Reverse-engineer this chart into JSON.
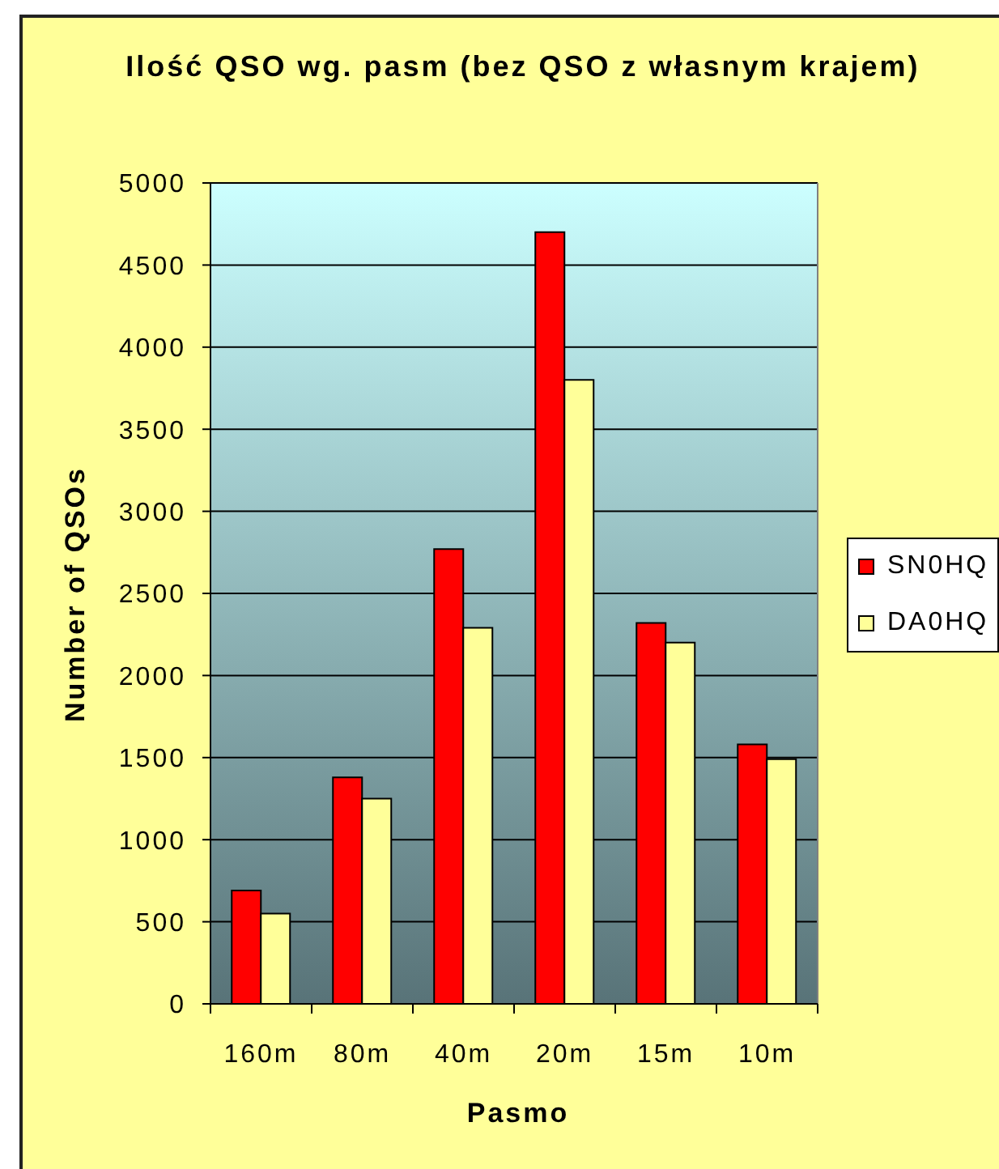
{
  "chart_data": {
    "type": "bar",
    "title": "Ilość QSO wg. pasm (bez QSO z własnym krajem)",
    "xlabel": "Pasmo",
    "ylabel": "Number of QSOs",
    "categories": [
      "160m",
      "80m",
      "40m",
      "20m",
      "15m",
      "10m"
    ],
    "series": [
      {
        "name": "SN0HQ",
        "color": "#ff0000",
        "values": [
          690,
          1380,
          2770,
          4700,
          2320,
          1580
        ]
      },
      {
        "name": "DA0HQ",
        "color": "#ffff99",
        "values": [
          550,
          1250,
          2290,
          3800,
          2200,
          1490
        ]
      }
    ],
    "ylim": [
      0,
      5000
    ],
    "yticks": [
      0,
      500,
      1000,
      1500,
      2000,
      2500,
      3000,
      3500,
      4000,
      4500,
      5000
    ],
    "grid": "y",
    "legend": "right"
  }
}
